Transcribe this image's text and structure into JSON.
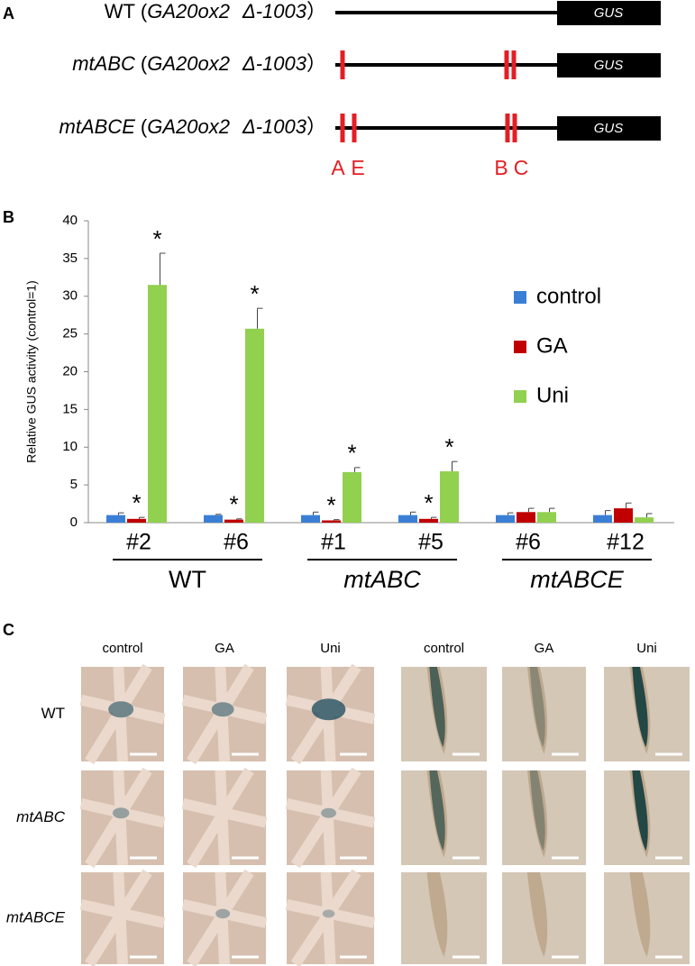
{
  "panel_a": {
    "label": "A",
    "constructs": [
      {
        "name": "WT",
        "italic": false
      },
      {
        "name": "mtABC",
        "italic": true
      },
      {
        "name": "mtABCE",
        "italic": true
      }
    ],
    "promoter": {
      "open": "(",
      "gene": "GA20ox2",
      "deletion": "Δ-1003",
      "close": "）"
    },
    "reporter": "GUS",
    "sites": [
      "A",
      "E",
      "B",
      "C"
    ]
  },
  "chart_data": {
    "type": "bar",
    "panel_label": "B",
    "ylabel": "Relative GUS activity (control=1)",
    "groups": [
      {
        "label": "WT",
        "italic": false,
        "categories": [
          "#2",
          "#6"
        ]
      },
      {
        "label": "mtABC",
        "italic": true,
        "categories": [
          "#1",
          "#5"
        ]
      },
      {
        "label": "mtABCE",
        "italic": true,
        "categories": [
          "#6",
          "#12"
        ]
      }
    ],
    "series": [
      {
        "name": "control",
        "color": "#3a7fd5",
        "values": [
          1.0,
          1.0,
          1.0,
          1.0,
          1.0,
          1.0
        ],
        "errors": [
          0.3,
          0.1,
          0.4,
          0.4,
          0.3,
          0.6
        ],
        "labels": [
          null,
          null,
          null,
          null,
          null,
          null
        ]
      },
      {
        "name": "GA",
        "color": "#c00000",
        "values": [
          0.5,
          0.4,
          0.3,
          0.5,
          1.4,
          1.9
        ],
        "errors": [
          0.2,
          0.1,
          0.1,
          0.2,
          0.5,
          0.7
        ],
        "labels": [
          "*",
          "*",
          "*",
          "*",
          null,
          null
        ]
      },
      {
        "name": "Uni",
        "color": "#92d050",
        "values": [
          31.5,
          25.7,
          6.7,
          6.8,
          1.4,
          0.7
        ],
        "errors": [
          4.2,
          2.7,
          0.6,
          1.3,
          0.5,
          0.5
        ],
        "labels": [
          "*",
          "*",
          "*",
          "*",
          null,
          null
        ]
      }
    ],
    "ylim": [
      0,
      40
    ],
    "yticks": [
      0,
      5,
      10,
      15,
      20,
      25,
      30,
      35,
      40
    ],
    "legend": "right"
  },
  "panel_c": {
    "label": "C",
    "columns": [
      "control",
      "GA",
      "Uni",
      "control",
      "GA",
      "Uni"
    ],
    "rows": [
      {
        "name": "WT",
        "italic": false
      },
      {
        "name": "mtABC",
        "italic": true
      },
      {
        "name": "mtABCE",
        "italic": true
      }
    ]
  }
}
